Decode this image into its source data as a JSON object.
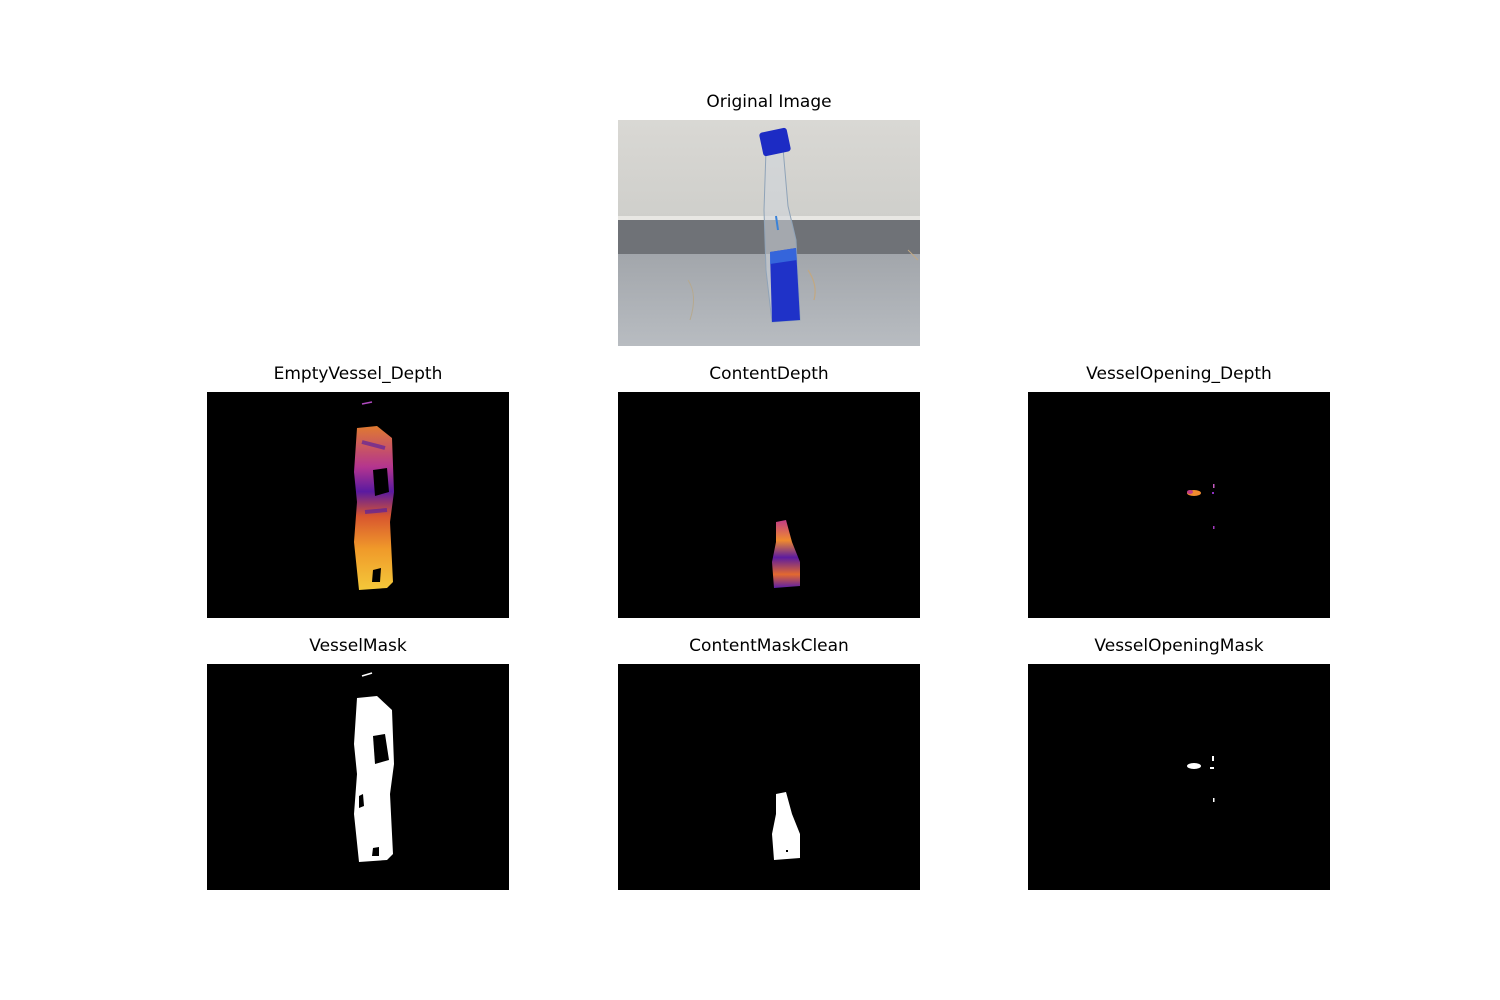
{
  "figure": {
    "panels": [
      {
        "id": "original",
        "title": "Original Image"
      },
      {
        "id": "empty-vessel-depth",
        "title": "EmptyVessel_Depth"
      },
      {
        "id": "content-depth",
        "title": "ContentDepth"
      },
      {
        "id": "vessel-opening-depth",
        "title": "VesselOpening_Depth"
      },
      {
        "id": "vessel-mask",
        "title": "VesselMask"
      },
      {
        "id": "content-mask-clean",
        "title": "ContentMaskClean"
      },
      {
        "id": "vessel-opening-mask",
        "title": "VesselOpeningMask"
      }
    ]
  },
  "colors": {
    "background": "#ffffff",
    "mask_background": "#000000",
    "mask_foreground": "#ffffff",
    "plasma_dark": "#3a0c8a",
    "plasma_mid": "#c03a83",
    "plasma_orange": "#f0832a",
    "plasma_yellow": "#f5d13a",
    "cap_blue": "#1c2bc4"
  }
}
